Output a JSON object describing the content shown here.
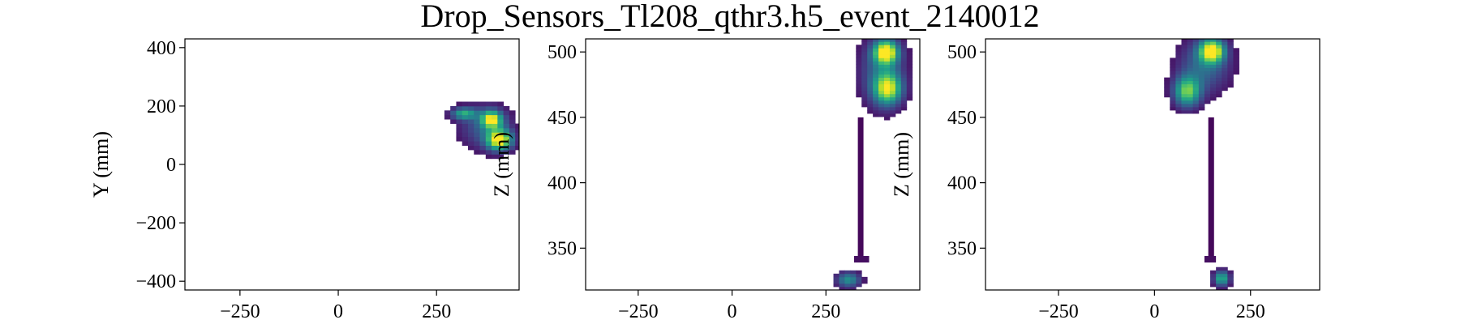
{
  "title": "Drop_Sensors_Tl208_qthr3.h5_event_2140012",
  "chart_data": [
    {
      "type": "heatmap",
      "panel": "xy",
      "xlabel": "",
      "ylabel": "Y (mm)",
      "xlim": [
        -390,
        460
      ],
      "ylim": [
        -430,
        430
      ],
      "xticks": [
        -250,
        0,
        250
      ],
      "yticks": [
        -400,
        -200,
        0,
        200,
        400
      ],
      "xtick_labels": [
        "−250",
        "0",
        "250"
      ],
      "ytick_labels": [
        "−400",
        "−200",
        "0",
        "200",
        "400"
      ],
      "bin_x": 15,
      "bin_y": 15,
      "colormap": "viridis",
      "blobs": [
        {
          "x": 410,
          "y": 85,
          "sx": 22,
          "sy": 24,
          "peak": 1.0
        },
        {
          "x": 390,
          "y": 155,
          "sx": 18,
          "sy": 20,
          "peak": 0.85
        },
        {
          "x": 320,
          "y": 175,
          "sx": 22,
          "sy": 14,
          "peak": 0.55
        },
        {
          "x": 375,
          "y": 130,
          "sx": 45,
          "sy": 50,
          "peak": 0.3
        }
      ]
    },
    {
      "type": "heatmap",
      "panel": "xz",
      "xlabel": "",
      "ylabel": "Z (mm)",
      "xlim": [
        -390,
        500
      ],
      "ylim": [
        318,
        510
      ],
      "xticks": [
        -250,
        0,
        250
      ],
      "yticks": [
        350,
        400,
        450,
        500
      ],
      "xtick_labels": [
        "−250",
        "0",
        "250"
      ],
      "ytick_labels": [
        "350",
        "400",
        "450",
        "500"
      ],
      "bin_x": 15,
      "bin_y": 2.5,
      "colormap": "viridis",
      "blobs": [
        {
          "x": 410,
          "y": 500,
          "sx": 22,
          "sy": 6,
          "peak": 1.0
        },
        {
          "x": 415,
          "y": 472,
          "sx": 25,
          "sy": 8,
          "peak": 0.8
        },
        {
          "x": 400,
          "y": 485,
          "sx": 40,
          "sy": 18,
          "peak": 0.35
        },
        {
          "x": 310,
          "y": 326,
          "sx": 22,
          "sy": 4,
          "peak": 0.5
        }
      ],
      "tracks": [
        {
          "x0": 335,
          "x1": 350,
          "y0": 340,
          "y1": 450,
          "level": 0.02
        },
        {
          "x0": 325,
          "x1": 365,
          "y0": 339,
          "y1": 344,
          "level": 0.04
        }
      ]
    },
    {
      "type": "heatmap",
      "panel": "yz",
      "xlabel": "",
      "ylabel": "Z (mm)",
      "xlim": [
        -440,
        430
      ],
      "ylim": [
        318,
        510
      ],
      "xticks": [
        -250,
        0,
        250
      ],
      "yticks": [
        350,
        400,
        450,
        500
      ],
      "xtick_labels": [
        "−250",
        "0",
        "250"
      ],
      "ytick_labels": [
        "350",
        "400",
        "450",
        "500"
      ],
      "bin_x": 15,
      "bin_y": 2.5,
      "colormap": "viridis",
      "blobs": [
        {
          "x": 150,
          "y": 501,
          "sx": 22,
          "sy": 6,
          "peak": 1.0
        },
        {
          "x": 85,
          "y": 470,
          "sx": 24,
          "sy": 8,
          "peak": 0.75
        },
        {
          "x": 130,
          "y": 490,
          "sx": 45,
          "sy": 14,
          "peak": 0.35
        },
        {
          "x": 175,
          "y": 327,
          "sx": 14,
          "sy": 4,
          "peak": 0.65
        }
      ],
      "tracks": [
        {
          "x0": 140,
          "x1": 155,
          "y0": 340,
          "y1": 450,
          "level": 0.02
        },
        {
          "x0": 130,
          "x1": 160,
          "y0": 339,
          "y1": 344,
          "level": 0.04
        }
      ]
    }
  ]
}
